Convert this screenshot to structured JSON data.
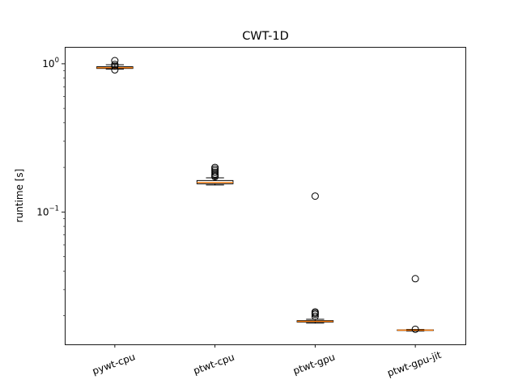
{
  "chart_data": {
    "type": "box",
    "title": "CWT-1D",
    "xlabel": "",
    "ylabel": "runtime [s]",
    "yscale": "log",
    "ylim": [
      0.0128,
      1.3
    ],
    "y_ticks": [
      {
        "value": 1.0,
        "base": "10",
        "exp": "0"
      },
      {
        "value": 0.1,
        "base": "10",
        "exp": "−1"
      }
    ],
    "categories": [
      "pywt-cpu",
      "ptwt-cpu",
      "ptwt-gpu",
      "ptwt-gpu-jit"
    ],
    "x_tick_rotation": "rotated",
    "grid": false,
    "boxes": [
      {
        "label": "pywt-cpu",
        "whisker_low": 0.92,
        "q1": 0.93,
        "median": 0.94,
        "q3": 0.955,
        "whisker_high": 0.985,
        "outliers": [
          1.05,
          0.99,
          0.965,
          0.91
        ]
      },
      {
        "label": "ptwt-cpu",
        "whisker_low": 0.152,
        "q1": 0.155,
        "median": 0.158,
        "q3": 0.163,
        "whisker_high": 0.17,
        "outliers": [
          0.2,
          0.195,
          0.19,
          0.185,
          0.18,
          0.176,
          0.173
        ]
      },
      {
        "label": "ptwt-gpu",
        "whisker_low": 0.0178,
        "q1": 0.0181,
        "median": 0.0183,
        "q3": 0.0185,
        "whisker_high": 0.0189,
        "outliers": [
          0.128,
          0.0212,
          0.0208,
          0.0204,
          0.0198
        ]
      },
      {
        "label": "ptwt-gpu-jit",
        "whisker_low": 0.01575,
        "q1": 0.01588,
        "median": 0.01595,
        "q3": 0.01602,
        "whisker_high": 0.01615,
        "outliers": [
          0.0355,
          0.01618
        ]
      }
    ],
    "colors": {
      "box": "#000000",
      "median": "#ff7f0e",
      "outlier": "#000000"
    }
  }
}
